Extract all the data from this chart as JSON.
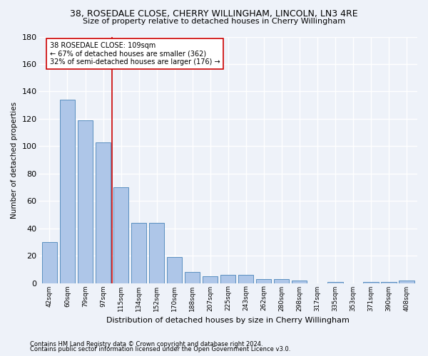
{
  "title1": "38, ROSEDALE CLOSE, CHERRY WILLINGHAM, LINCOLN, LN3 4RE",
  "title2": "Size of property relative to detached houses in Cherry Willingham",
  "xlabel": "Distribution of detached houses by size in Cherry Willingham",
  "ylabel": "Number of detached properties",
  "footer1": "Contains HM Land Registry data © Crown copyright and database right 2024.",
  "footer2": "Contains public sector information licensed under the Open Government Licence v3.0.",
  "categories": [
    "42sqm",
    "60sqm",
    "79sqm",
    "97sqm",
    "115sqm",
    "134sqm",
    "152sqm",
    "170sqm",
    "188sqm",
    "207sqm",
    "225sqm",
    "243sqm",
    "262sqm",
    "280sqm",
    "298sqm",
    "317sqm",
    "335sqm",
    "353sqm",
    "371sqm",
    "390sqm",
    "408sqm"
  ],
  "values": [
    30,
    134,
    119,
    103,
    70,
    44,
    44,
    19,
    8,
    5,
    6,
    6,
    3,
    3,
    2,
    0,
    1,
    0,
    1,
    1,
    2
  ],
  "bar_color": "#aec6e8",
  "bar_edge_color": "#5a8fc0",
  "property_line_color": "#cc0000",
  "annotation_line1": "38 ROSEDALE CLOSE: 109sqm",
  "annotation_line2": "← 67% of detached houses are smaller (362)",
  "annotation_line3": "32% of semi-detached houses are larger (176) →",
  "annotation_box_color": "#ffffff",
  "annotation_box_edge": "#cc0000",
  "ylim": [
    0,
    180
  ],
  "yticks": [
    0,
    20,
    40,
    60,
    80,
    100,
    120,
    140,
    160,
    180
  ],
  "bg_color": "#eef2f9",
  "grid_color": "#ffffff"
}
